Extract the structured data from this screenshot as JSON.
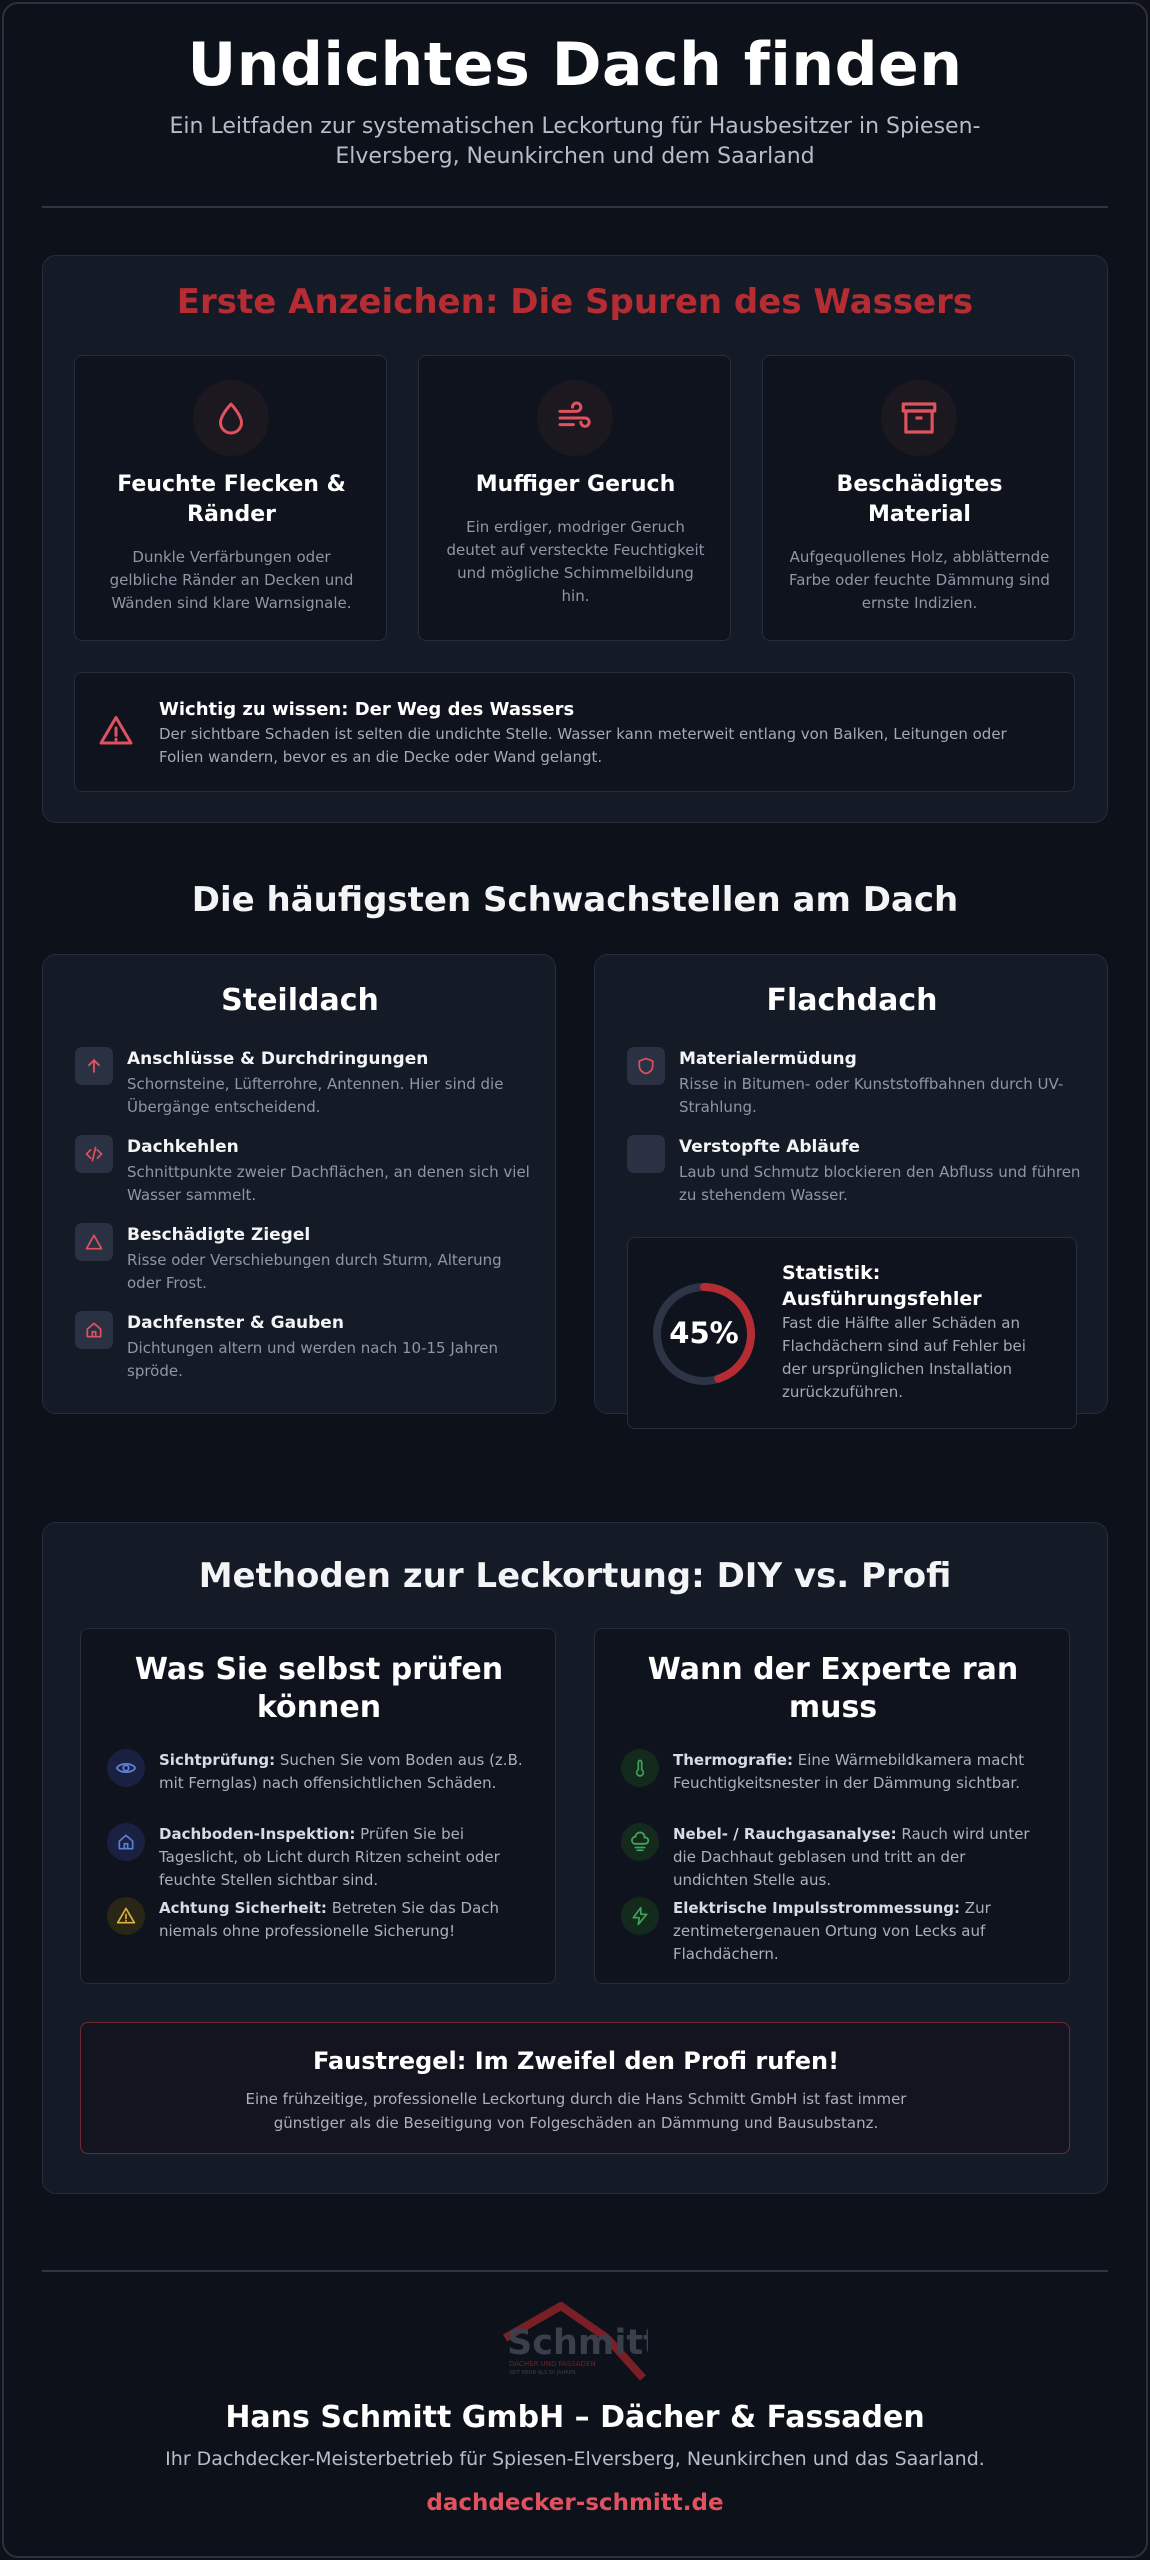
{
  "header": {
    "title": "Undichtes Dach finden",
    "subtitle": "Ein Leitfaden zur systematischen Leckortung für Hausbesitzer in Spiesen-Elversberg, Neunkirchen und dem Saarland"
  },
  "signs": {
    "title": "Erste Anzeichen: Die Spuren des Wassers",
    "cards": [
      {
        "icon": "water-drop-icon",
        "title": "Feuchte Flecken & Ränder",
        "text": "Dunkle Verfärbungen oder gelbliche Ränder an Decken und Wänden sind klare Warnsignale."
      },
      {
        "icon": "wind-icon",
        "title": "Muffiger Geruch",
        "text": "Ein erdiger, modriger Geruch deutet auf versteckte Feuchtigkeit und mögliche Schimmelbildung hin."
      },
      {
        "icon": "archive-box-icon",
        "title": "Beschädigtes Material",
        "text": "Aufgequollenes Holz, abblätternde Farbe oder feuchte Dämmung sind ernste Indizien."
      }
    ],
    "notice": {
      "title": "Wichtig zu wissen: Der Weg des Wassers",
      "text": "Der sichtbare Schaden ist selten die undichte Stelle. Wasser kann meterweit entlang von Balken, Leitungen oder Folien wandern, bevor es an die Decke oder Wand gelangt."
    }
  },
  "weak": {
    "title": "Die häufigsten Schwachstellen am Dach",
    "steep": {
      "title": "Steildach",
      "items": [
        {
          "icon": "arrow-up-icon",
          "title": "Anschlüsse & Durchdringungen",
          "text": "Schornsteine, Lüfterrohre, Antennen. Hier sind die Übergänge entscheidend."
        },
        {
          "icon": "code-icon",
          "title": "Dachkehlen",
          "text": "Schnittpunkte zweier Dachflächen, an denen sich viel Wasser sammelt."
        },
        {
          "icon": "triangle-icon",
          "title": "Beschädigte Ziegel",
          "text": "Risse oder Verschiebungen durch Sturm, Alterung oder Frost."
        },
        {
          "icon": "house-icon",
          "title": "Dachfenster & Gauben",
          "text": "Dichtungen altern und werden nach 10-15 Jahren spröde."
        }
      ]
    },
    "flat": {
      "title": "Flachdach",
      "items": [
        {
          "icon": "shield-icon",
          "title": "Materialermüdung",
          "text": "Risse in Bitumen- oder Kunststoffbahnen durch UV-Strahlung."
        },
        {
          "icon": "blank-icon",
          "title": "Verstopfte Abläufe",
          "text": "Laub und Schmutz blockieren den Abfluss und führen zu stehendem Wasser."
        }
      ],
      "stat": {
        "value": "45%",
        "fraction": 0.45,
        "title": "Statistik: Ausführungsfehler",
        "text": "Fast die Hälfte aller Schäden an Flachdächern sind auf Fehler bei der ursprünglichen Installation zurückzuführen."
      }
    }
  },
  "methods": {
    "title": "Methoden zur Leckortung: DIY vs. Profi",
    "diy": {
      "title": "Was Sie selbst prüfen können",
      "items": [
        {
          "icon": "eye-icon",
          "bold": "Sichtprüfung:",
          "text": " Suchen Sie vom Boden aus (z.B. mit Fernglas) nach offensichtlichen Schäden."
        },
        {
          "icon": "house-icon",
          "bold": "Dachboden-Inspektion:",
          "text": " Prüfen Sie bei Tageslicht, ob Licht durch Ritzen scheint oder feuchte Stellen sichtbar sind."
        },
        {
          "icon": "warning-icon",
          "bold": "Achtung Sicherheit:",
          "text": " Betreten Sie das Dach niemals ohne professionelle Sicherung!"
        }
      ]
    },
    "pro": {
      "title": "Wann der Experte ran muss",
      "items": [
        {
          "icon": "thermometer-icon",
          "bold": "Thermografie:",
          "text": " Eine Wärmebildkamera macht Feuchtigkeitsnester in der Dämmung sichtbar."
        },
        {
          "icon": "cloud-fog-icon",
          "bold": "Nebel- / Rauchgasanalyse:",
          "text": " Rauch wird unter die Dachhaut geblasen und tritt an der undichten Stelle aus."
        },
        {
          "icon": "lightning-icon",
          "bold": "Elektrische Impulsstrommessung:",
          "text": " Zur zentimetergenauen Ortung von Lecks auf Flachdächern."
        }
      ]
    },
    "rule": {
      "title": "Faustregel: Im Zweifel den Profi rufen!",
      "text": "Eine frühzeitige, professionelle Leckortung durch die Hans Schmitt GmbH ist fast immer günstiger als die Beseitigung von Folgeschäden an Dämmung und Bausubstanz."
    }
  },
  "footer": {
    "logo_text": "Schmitt",
    "logo_sub1": "DÄCHER UND FASSADEN",
    "logo_sub2": "SEIT MEHR ALS 50 JAHREN",
    "company": "Hans Schmitt GmbH – Dächer & Fassaden",
    "tagline": "Ihr Dachdecker-Meisterbetrieb für Spiesen-Elversberg, Neunkirchen und das Saarland.",
    "link": "dachdecker-schmitt.de"
  },
  "colors": {
    "accent_red": "#e05260",
    "title_red": "#b52c33",
    "blue": "#5b7fd6",
    "yellow": "#e0b43a",
    "green": "#3fa35b"
  }
}
